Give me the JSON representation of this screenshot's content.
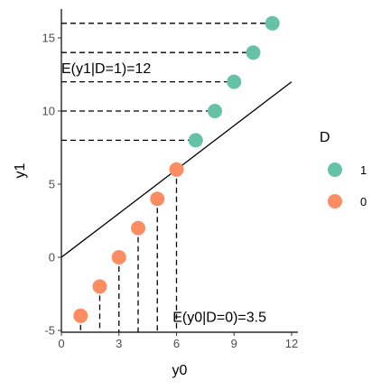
{
  "chart_data": {
    "type": "scatter",
    "xlabel": "y0",
    "ylabel": "y1",
    "xlim": [
      0,
      12
    ],
    "ylim": [
      -5,
      17.5
    ],
    "xticks": [
      "0",
      "3",
      "6",
      "9",
      "12"
    ],
    "yticks": [
      "-5",
      "0",
      "5",
      "10",
      "15"
    ],
    "grid": false,
    "legend_placement": "right",
    "legend_title": "D",
    "series": [
      {
        "name": "1",
        "color": "#66c2a5",
        "x": [
          7,
          8,
          9,
          10,
          11
        ],
        "y": [
          8,
          10,
          12,
          14,
          16
        ]
      },
      {
        "name": "0",
        "color": "#fc8d62",
        "x": [
          1,
          2,
          3,
          4,
          5,
          6
        ],
        "y": [
          -4,
          -2,
          0,
          2,
          4,
          6
        ]
      }
    ],
    "reference_line": {
      "x": [
        0,
        12
      ],
      "y": [
        0,
        12
      ]
    },
    "annotations": [
      "E(y1|D=1)=12",
      "E(y0|D=0)=3.5"
    ]
  }
}
